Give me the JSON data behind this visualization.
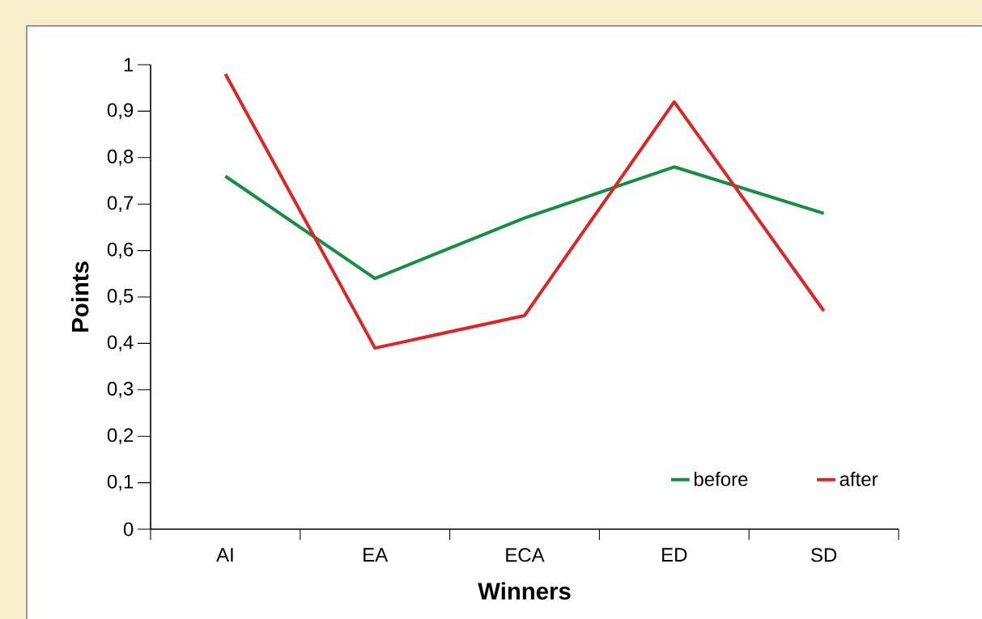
{
  "chart_data": {
    "type": "line",
    "xlabel": "Winners",
    "ylabel": "Points",
    "categories": [
      "AI",
      "EA",
      "ECA",
      "ED",
      "SD"
    ],
    "series": [
      {
        "name": "before",
        "color": "#11903f",
        "values": [
          0.76,
          0.54,
          0.67,
          0.78,
          0.68
        ]
      },
      {
        "name": "after",
        "color": "#de2424",
        "values": [
          0.98,
          0.39,
          0.46,
          0.92,
          0.47
        ]
      }
    ],
    "ylim": [
      0,
      1
    ],
    "yticks": [
      0,
      {
        "value": 0.1,
        "label": "0,1"
      },
      {
        "value": 0.2,
        "label": "0,2"
      },
      {
        "value": 0.3,
        "label": "0,3"
      },
      {
        "value": 0.4,
        "label": "0,4"
      },
      {
        "value": 0.5,
        "label": "0,5"
      },
      {
        "value": 0.6,
        "label": "0,6"
      },
      {
        "value": 0.7,
        "label": "0,7"
      },
      {
        "value": 0.8,
        "label": "0,8"
      },
      {
        "value": 0.9,
        "label": "0,9"
      },
      1
    ],
    "grid": false,
    "legend": "bottom right",
    "marker": "none",
    "line_style": "solid"
  }
}
